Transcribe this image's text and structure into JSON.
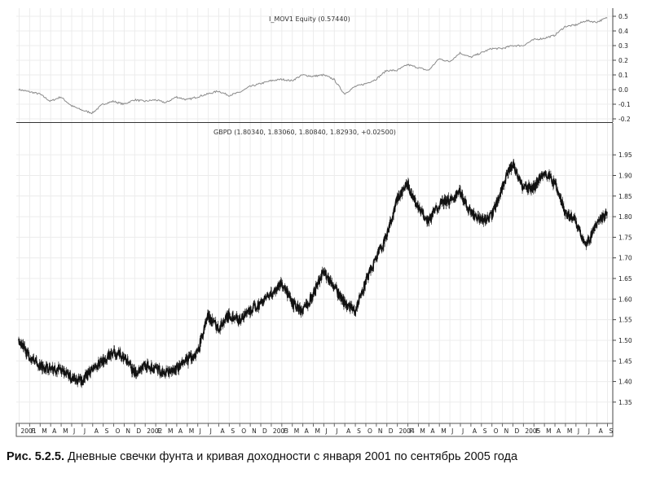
{
  "caption": {
    "label": "Рис. 5.2.5.",
    "text": "Дневные свечки фунта и кривая доходности с января 2001 по сентябрь 2005 года"
  },
  "chart_data": [
    {
      "type": "line",
      "title": "I_MOV1 Equity (0.57440)",
      "ylim": [
        -0.2,
        0.5
      ],
      "yticks": [
        "0.5",
        "0.4",
        "0.3",
        "0.2",
        "0.1",
        "0.0",
        "-0.1",
        "-0.2"
      ],
      "ytick_values": [
        0.5,
        0.4,
        0.3,
        0.2,
        0.1,
        0.0,
        -0.1,
        -0.2
      ],
      "grid": true,
      "series": [
        {
          "x": [
            0,
            2,
            3,
            4,
            5,
            6,
            7,
            8,
            9,
            10,
            11,
            12,
            13,
            14,
            15,
            16,
            17,
            18,
            19,
            20,
            21,
            22,
            23,
            24,
            25,
            26,
            27,
            28,
            29,
            30,
            31,
            32,
            33,
            34,
            35,
            36,
            37,
            38,
            39,
            40,
            41,
            42,
            43,
            44,
            45,
            46,
            47,
            48,
            49,
            50,
            51,
            52,
            53,
            54,
            55,
            56
          ],
          "values": [
            0.0,
            -0.03,
            -0.08,
            -0.05,
            -0.11,
            -0.14,
            -0.16,
            -0.1,
            -0.08,
            -0.1,
            -0.07,
            -0.08,
            -0.07,
            -0.09,
            -0.05,
            -0.07,
            -0.05,
            -0.03,
            -0.01,
            -0.04,
            -0.02,
            0.02,
            0.04,
            0.06,
            0.07,
            0.06,
            0.1,
            0.09,
            0.1,
            0.07,
            -0.03,
            0.02,
            0.04,
            0.07,
            0.13,
            0.13,
            0.17,
            0.15,
            0.13,
            0.21,
            0.19,
            0.25,
            0.22,
            0.25,
            0.28,
            0.28,
            0.3,
            0.3,
            0.34,
            0.35,
            0.37,
            0.43,
            0.44,
            0.47,
            0.46,
            0.49
          ]
        }
      ]
    },
    {
      "type": "candlestick",
      "title": "GBPD (1.80340, 1.83060, 1.80840, 1.82930, +0.02500)",
      "ylim": [
        1.33,
        1.98
      ],
      "yticks": [
        "1.95",
        "1.90",
        "1.85",
        "1.80",
        "1.75",
        "1.70",
        "1.65",
        "1.60",
        "1.55",
        "1.50",
        "1.45",
        "1.40",
        "1.35"
      ],
      "ytick_values": [
        1.95,
        1.9,
        1.85,
        1.8,
        1.75,
        1.7,
        1.65,
        1.6,
        1.55,
        1.5,
        1.45,
        1.4,
        1.35
      ],
      "grid": true,
      "xticks": [
        "2001",
        "F",
        "M",
        "A",
        "M",
        "J",
        "J",
        "A",
        "S",
        "O",
        "N",
        "D",
        "2002",
        "F",
        "M",
        "A",
        "M",
        "J",
        "J",
        "A",
        "S",
        "O",
        "N",
        "D",
        "2003",
        "F",
        "M",
        "A",
        "M",
        "J",
        "J",
        "A",
        "S",
        "O",
        "N",
        "D",
        "2004",
        "F",
        "M",
        "A",
        "M",
        "J",
        "J",
        "A",
        "S",
        "O",
        "N",
        "D",
        "2005",
        "F",
        "M",
        "A",
        "M",
        "J",
        "J",
        "A",
        "S"
      ],
      "series": [
        {
          "x": [
            0,
            0.5,
            1,
            2,
            3,
            4,
            5,
            6,
            7,
            8,
            9,
            10,
            11,
            12,
            13,
            14,
            15,
            16,
            17,
            18,
            19,
            20,
            21,
            22,
            23,
            24,
            25,
            26,
            27,
            28,
            29,
            30,
            31,
            32,
            33,
            34,
            35,
            36,
            37,
            38,
            39,
            40,
            41,
            42,
            43,
            44,
            45,
            46,
            47,
            48,
            49,
            50,
            51,
            52,
            53,
            54,
            55,
            56
          ],
          "values": [
            1.5,
            1.48,
            1.46,
            1.44,
            1.43,
            1.43,
            1.41,
            1.4,
            1.43,
            1.45,
            1.47,
            1.46,
            1.42,
            1.44,
            1.43,
            1.42,
            1.43,
            1.45,
            1.47,
            1.56,
            1.53,
            1.56,
            1.55,
            1.57,
            1.59,
            1.61,
            1.64,
            1.59,
            1.57,
            1.61,
            1.67,
            1.63,
            1.59,
            1.57,
            1.64,
            1.7,
            1.75,
            1.84,
            1.88,
            1.82,
            1.79,
            1.83,
            1.84,
            1.86,
            1.81,
            1.79,
            1.8,
            1.87,
            1.93,
            1.87,
            1.87,
            1.91,
            1.88,
            1.81,
            1.79,
            1.73,
            1.78,
            1.81
          ]
        }
      ]
    }
  ]
}
